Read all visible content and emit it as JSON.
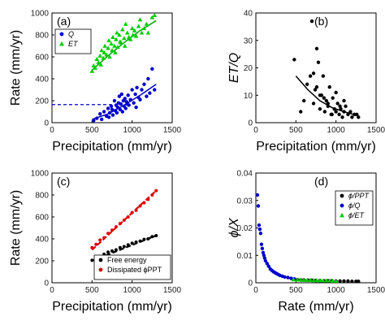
{
  "chart_data": [
    {
      "type": "scatter",
      "panel_tag": "(a)",
      "xlabel": "Precipitation (mm/yr)",
      "ylabel": "Rate (mm/yr)",
      "xlim": [
        0,
        1500
      ],
      "ylim": [
        0,
        1000
      ],
      "xticks": [
        "0",
        "500",
        "1000",
        "1500"
      ],
      "yticks": [
        "0",
        "200",
        "400",
        "600",
        "800",
        "1000"
      ],
      "legend_position": "top-left",
      "reference_line": {
        "y": 165,
        "x_to": 880,
        "style": "dashed",
        "color": "#0000cc"
      },
      "series": [
        {
          "name": "Q",
          "marker": "circle",
          "color": "#0000cc",
          "x": [
            520,
            560,
            600,
            620,
            650,
            680,
            700,
            710,
            720,
            740,
            750,
            760,
            780,
            790,
            800,
            810,
            820,
            830,
            840,
            850,
            860,
            870,
            880,
            890,
            900,
            910,
            920,
            930,
            940,
            950,
            960,
            980,
            1000,
            1020,
            1040,
            1050,
            1060,
            1080,
            1100,
            1120,
            1150,
            1180,
            1200,
            1220,
            1250,
            1280
          ],
          "y": [
            20,
            40,
            80,
            30,
            100,
            60,
            130,
            50,
            90,
            150,
            120,
            70,
            200,
            110,
            160,
            90,
            140,
            180,
            240,
            120,
            170,
            260,
            100,
            200,
            150,
            220,
            130,
            190,
            170,
            250,
            160,
            210,
            300,
            180,
            260,
            140,
            320,
            230,
            210,
            300,
            350,
            240,
            400,
            270,
            490,
            300
          ],
          "fit": [
            [
              500,
              30
            ],
            [
              700,
              80
            ],
            [
              900,
              160
            ],
            [
              1100,
              250
            ],
            [
              1300,
              350
            ]
          ]
        },
        {
          "name": "ET",
          "marker": "triangle",
          "color": "#00cc00",
          "x": [
            500,
            520,
            540,
            560,
            580,
            600,
            610,
            620,
            640,
            650,
            660,
            680,
            700,
            710,
            720,
            740,
            750,
            760,
            780,
            790,
            800,
            810,
            820,
            840,
            850,
            860,
            880,
            900,
            910,
            920,
            940,
            960,
            980,
            1000,
            1010,
            1030,
            1050,
            1080,
            1100,
            1120,
            1150,
            1180,
            1200,
            1250,
            1280
          ],
          "y": [
            470,
            520,
            500,
            580,
            550,
            610,
            530,
            660,
            590,
            640,
            700,
            620,
            680,
            750,
            600,
            720,
            660,
            780,
            700,
            640,
            760,
            820,
            690,
            800,
            740,
            730,
            850,
            770,
            700,
            900,
            820,
            780,
            760,
            860,
            800,
            840,
            790,
            880,
            940,
            820,
            860,
            900,
            820,
            960,
            980
          ],
          "fit": [
            [
              500,
              480
            ],
            [
              700,
              610
            ],
            [
              900,
              730
            ],
            [
              1100,
              840
            ],
            [
              1300,
              930
            ]
          ]
        }
      ]
    },
    {
      "type": "scatter",
      "panel_tag": "(b)",
      "xlabel": "Precipitation (mm/yr)",
      "ylabel": "ET/Q",
      "xlim": [
        0,
        1500
      ],
      "ylim": [
        0,
        40
      ],
      "xticks": [
        "0",
        "500",
        "1000",
        "1500"
      ],
      "yticks": [
        "0",
        "10",
        "20",
        "30",
        "40"
      ],
      "series": [
        {
          "name": "",
          "marker": "circle",
          "color": "#000000",
          "x": [
            480,
            560,
            600,
            640,
            680,
            700,
            720,
            740,
            760,
            780,
            800,
            820,
            840,
            860,
            880,
            900,
            920,
            940,
            960,
            980,
            1000,
            1020,
            1040,
            1060,
            1080,
            1100,
            1120,
            1150,
            1180,
            1200,
            1230,
            1260,
            1280,
            720,
            760,
            800,
            850,
            900,
            950,
            1000,
            1050,
            1100
          ],
          "y": [
            23,
            4,
            8,
            14,
            17,
            37,
            7,
            12,
            27,
            22,
            5,
            10,
            17,
            4,
            8,
            6,
            13,
            3,
            9,
            5,
            4,
            7,
            3,
            5,
            2,
            4,
            6,
            3,
            4,
            2,
            3,
            3,
            2,
            18,
            13,
            10,
            9,
            7,
            3,
            11,
            6,
            8
          ],
          "fit": [
            [
              500,
              17
            ],
            [
              650,
              12
            ],
            [
              800,
              8
            ],
            [
              950,
              5.5
            ],
            [
              1100,
              4
            ],
            [
              1280,
              2.5
            ]
          ]
        }
      ]
    },
    {
      "type": "scatter",
      "panel_tag": "(c)",
      "xlabel": "Precipitation (mm/yr)",
      "ylabel": "Rate (mm/yr)",
      "xlim": [
        0,
        1500
      ],
      "ylim": [
        0,
        1000
      ],
      "xticks": [
        "0",
        "500",
        "1000",
        "1500"
      ],
      "yticks": [
        "0",
        "200",
        "400",
        "600",
        "800",
        "1000"
      ],
      "legend_position": "bottom-right",
      "series": [
        {
          "name": "Free energy",
          "marker": "circle",
          "color": "#000000",
          "x": [
            500,
            550,
            600,
            650,
            700,
            750,
            800,
            850,
            900,
            950,
            1000,
            1050,
            1100,
            1150,
            1200,
            1250,
            1300
          ],
          "y": [
            205,
            230,
            240,
            260,
            280,
            290,
            300,
            320,
            330,
            345,
            360,
            370,
            380,
            395,
            400,
            420,
            430
          ],
          "fit": [
            [
              500,
              200
            ],
            [
              1300,
              430
            ]
          ]
        },
        {
          "name": "Dissipated ϕPPT",
          "marker": "circle",
          "color": "#dd0000",
          "x": [
            500,
            550,
            600,
            650,
            700,
            750,
            800,
            850,
            900,
            950,
            1000,
            1050,
            1100,
            1150,
            1200,
            1250,
            1300
          ],
          "y": [
            320,
            350,
            390,
            410,
            450,
            480,
            510,
            540,
            570,
            600,
            640,
            660,
            700,
            730,
            760,
            800,
            840
          ],
          "fit": [
            [
              500,
              300
            ],
            [
              1300,
              840
            ]
          ]
        }
      ]
    },
    {
      "type": "scatter",
      "panel_tag": "(d)",
      "xlabel": "Rate (mm/yr)",
      "ylabel": "ϕ/X",
      "xlim": [
        0,
        1500
      ],
      "ylim": [
        0,
        0.04
      ],
      "xticks": [
        "0",
        "500",
        "1000",
        "1500"
      ],
      "yticks": [
        "0",
        "0.01",
        "0.02",
        "0.03",
        "0.04"
      ],
      "legend_position": "top-right",
      "series": [
        {
          "name": "ϕ/PPT",
          "marker": "circle",
          "color": "#000000",
          "x": [
            520,
            560,
            600,
            650,
            700,
            750,
            800,
            850,
            900,
            950,
            1000,
            1050,
            1100,
            1150,
            1200,
            1250,
            1280
          ],
          "y": [
            0.0011,
            0.001,
            0.001,
            0.0009,
            0.0009,
            0.0008,
            0.0008,
            0.0007,
            0.0007,
            0.0007,
            0.0006,
            0.0006,
            0.0006,
            0.0006,
            0.0005,
            0.0005,
            0.0005
          ]
        },
        {
          "name": "ϕ/Q",
          "marker": "circle",
          "color": "#0000cc",
          "x": [
            20,
            30,
            40,
            50,
            60,
            70,
            80,
            90,
            100,
            110,
            120,
            140,
            160,
            180,
            200,
            220,
            240,
            260,
            280,
            300,
            330,
            360,
            400,
            440,
            480
          ],
          "y": [
            0.032,
            0.028,
            0.021,
            0.0195,
            0.018,
            0.014,
            0.0125,
            0.011,
            0.01,
            0.009,
            0.008,
            0.007,
            0.006,
            0.005,
            0.0045,
            0.004,
            0.0037,
            0.0033,
            0.003,
            0.0027,
            0.0024,
            0.0021,
            0.0019,
            0.0016,
            0.0014
          ]
        },
        {
          "name": "ϕ/ET",
          "marker": "triangle",
          "color": "#00cc00",
          "x": [
            470,
            520,
            560,
            600,
            640,
            680,
            720,
            760,
            800,
            840,
            880,
            920,
            960,
            1000
          ],
          "y": [
            0.0012,
            0.0011,
            0.0011,
            0.001,
            0.001,
            0.001,
            0.0009,
            0.0009,
            0.0009,
            0.0008,
            0.0008,
            0.0008,
            0.0007,
            0.0007
          ]
        }
      ]
    }
  ]
}
